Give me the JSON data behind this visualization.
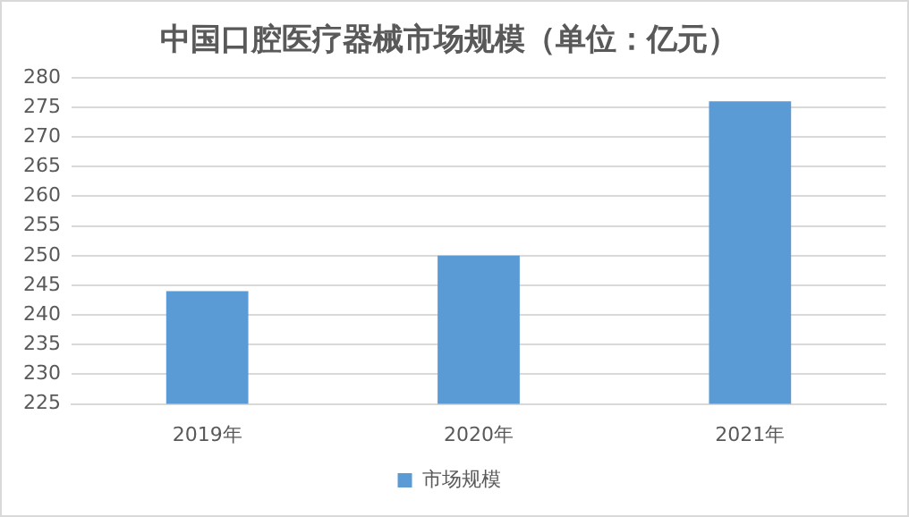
{
  "chart_data": {
    "type": "bar",
    "title": "中国口腔医疗器械市场规模（单位：亿元）",
    "categories": [
      "2019年",
      "2020年",
      "2021年"
    ],
    "series": [
      {
        "name": "市场规模",
        "color": "#5b9bd5",
        "values": [
          244,
          250,
          276
        ]
      }
    ],
    "ylim": [
      225,
      280
    ],
    "yticks": [
      225,
      230,
      235,
      240,
      245,
      250,
      255,
      260,
      265,
      270,
      275,
      280
    ],
    "grid": "y",
    "legend": "bottom"
  }
}
